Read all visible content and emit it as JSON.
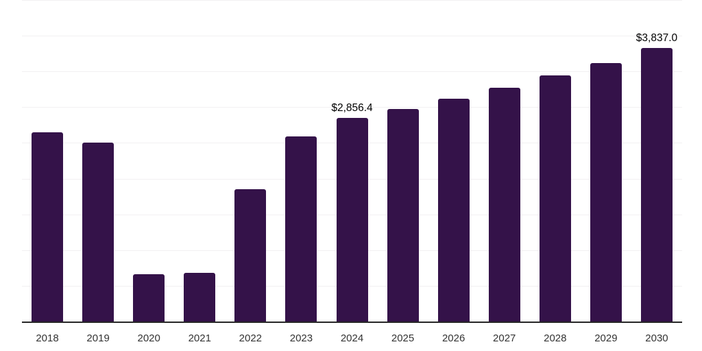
{
  "chart_data": {
    "type": "bar",
    "title": "",
    "xlabel": "",
    "ylabel": "",
    "categories": [
      "2018",
      "2019",
      "2020",
      "2021",
      "2022",
      "2023",
      "2024",
      "2025",
      "2026",
      "2027",
      "2028",
      "2029",
      "2030"
    ],
    "values": [
      2655,
      2510,
      670,
      690,
      1860,
      2600,
      2856.4,
      2985,
      3130,
      3280,
      3455,
      3630,
      3837.0
    ],
    "point_labels": [
      "",
      "",
      "",
      "",
      "",
      "",
      "$2,856.4",
      "",
      "",
      "",
      "",
      "",
      "$3,837.0"
    ],
    "ylim": [
      0,
      4500
    ],
    "grid_step": 500,
    "grid": true,
    "legend_position": "none",
    "y_tick_labels_visible": false,
    "colors": {
      "bar": "#341249",
      "grid": "#f2f0f2",
      "axis": "#262626",
      "tick_label": "#333333",
      "data_label": "#000000",
      "background": "#ffffff"
    }
  }
}
